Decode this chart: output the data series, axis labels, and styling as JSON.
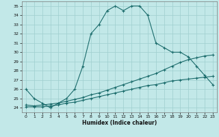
{
  "title": "",
  "xlabel": "Humidex (Indice chaleur)",
  "bg_color": "#c2e8e8",
  "grid_color": "#9ecece",
  "line_color": "#1a6b6b",
  "xlim": [
    -0.5,
    23.5
  ],
  "ylim": [
    23.5,
    35.5
  ],
  "xticks": [
    0,
    1,
    2,
    3,
    4,
    5,
    6,
    7,
    8,
    9,
    10,
    11,
    12,
    13,
    14,
    15,
    16,
    17,
    18,
    19,
    20,
    21,
    22,
    23
  ],
  "yticks": [
    24,
    25,
    26,
    27,
    28,
    29,
    30,
    31,
    32,
    33,
    34,
    35
  ],
  "line1_x": [
    0,
    1,
    2,
    3,
    4,
    5,
    6,
    7,
    8,
    9,
    10,
    11,
    12,
    13,
    14,
    15,
    16,
    17,
    18,
    19,
    20,
    21,
    22,
    23
  ],
  "line1_y": [
    26,
    25,
    24.5,
    24,
    24.5,
    25,
    26,
    28.5,
    32,
    33,
    34.5,
    35,
    34.5,
    35,
    35,
    34,
    31,
    30.5,
    30,
    30,
    29.5,
    28.5,
    27.5,
    26.5
  ],
  "line2_x": [
    0,
    1,
    2,
    3,
    4,
    5,
    6,
    7,
    8,
    9,
    10,
    11,
    12,
    13,
    14,
    15,
    16,
    17,
    18,
    19,
    20,
    21,
    22,
    23
  ],
  "line2_y": [
    24.3,
    24.2,
    24.3,
    24.4,
    24.5,
    24.7,
    24.9,
    25.1,
    25.4,
    25.6,
    25.9,
    26.2,
    26.5,
    26.8,
    27.1,
    27.4,
    27.7,
    28.1,
    28.5,
    28.9,
    29.2,
    29.4,
    29.6,
    29.7
  ],
  "line3_x": [
    0,
    1,
    2,
    3,
    4,
    5,
    6,
    7,
    8,
    9,
    10,
    11,
    12,
    13,
    14,
    15,
    16,
    17,
    18,
    19,
    20,
    21,
    22,
    23
  ],
  "line3_y": [
    24.1,
    24.1,
    24.1,
    24.2,
    24.3,
    24.5,
    24.6,
    24.8,
    25.0,
    25.2,
    25.4,
    25.6,
    25.8,
    26.0,
    26.2,
    26.4,
    26.5,
    26.7,
    26.9,
    27.0,
    27.1,
    27.2,
    27.3,
    27.4
  ]
}
